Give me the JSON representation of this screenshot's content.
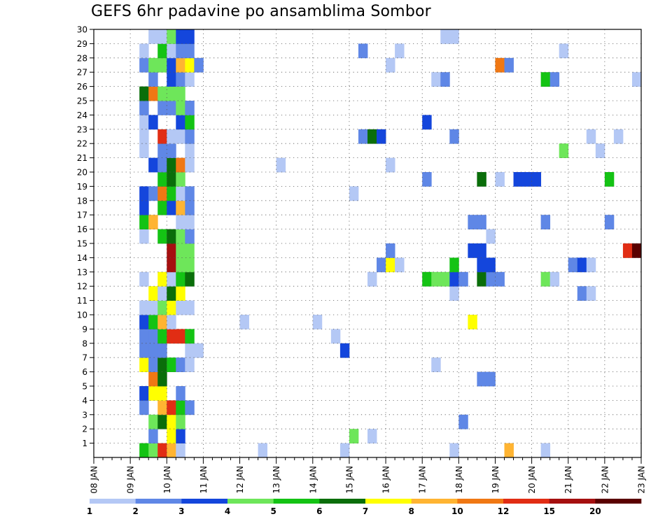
{
  "chart_data": {
    "type": "heatmap",
    "title": "GEFS 6hr padavine po ansamblima Sombor",
    "xlabel": "",
    "ylabel": "",
    "x_tick_labels": [
      "08 JAN",
      "09 JAN",
      "10 JAN",
      "11 JAN",
      "12 JAN",
      "13 JAN",
      "14 JAN",
      "15 JAN",
      "16 JAN",
      "17 JAN",
      "18 JAN",
      "19 JAN",
      "20 JAN",
      "21 JAN",
      "22 JAN",
      "23 JAN"
    ],
    "y_tick_labels": [
      "1",
      "2",
      "3",
      "4",
      "5",
      "6",
      "7",
      "8",
      "9",
      "10",
      "11",
      "12",
      "13",
      "14",
      "15",
      "16",
      "17",
      "18",
      "19",
      "20",
      "21",
      "22",
      "23",
      "24",
      "25",
      "26",
      "27",
      "28",
      "29",
      "30"
    ],
    "xlim": [
      0,
      60
    ],
    "ylim": [
      0,
      30
    ],
    "step_hours": 6,
    "grid": true,
    "grid_style": "dotted",
    "legend_position": "bottom",
    "legend": {
      "boundaries": [
        "1",
        "2",
        "3",
        "4",
        "5",
        "6",
        "7",
        "8",
        "10",
        "12",
        "15",
        "20"
      ],
      "colors": [
        "#b4c8f5",
        "#5f87e6",
        "#1446dc",
        "#6ee65a",
        "#14c314",
        "#0a6e0a",
        "#ffff00",
        "#ffb432",
        "#f07814",
        "#e12d14",
        "#a50f0f",
        "#5a0000"
      ]
    },
    "cell_colors": {
      "1": "#b4c8f5",
      "2": "#5f87e6",
      "3": "#1446dc",
      "4": "#6ee65a",
      "5": "#14c314",
      "6": "#0a6e0a",
      "7": "#ffff00",
      "8": "#ffb432",
      "9": "#f07814",
      "10": "#e12d14",
      "11": "#a50f0f",
      "12": "#5a0000"
    },
    "series": [
      {
        "member": 1,
        "values": [
          [
            6,
            5
          ],
          [
            7,
            4
          ],
          [
            8,
            10
          ],
          [
            9,
            8
          ],
          [
            10,
            1
          ],
          [
            19,
            1
          ],
          [
            28,
            1
          ],
          [
            40,
            1
          ],
          [
            46,
            8
          ],
          [
            50,
            1
          ]
        ]
      },
      {
        "member": 2,
        "values": [
          [
            7,
            2
          ],
          [
            9,
            7
          ],
          [
            10,
            3
          ],
          [
            29,
            4
          ],
          [
            31,
            1
          ]
        ]
      },
      {
        "member": 3,
        "values": [
          [
            7,
            4
          ],
          [
            8,
            6
          ],
          [
            9,
            7
          ],
          [
            10,
            4
          ],
          [
            41,
            2
          ]
        ]
      },
      {
        "member": 4,
        "values": [
          [
            6,
            2
          ],
          [
            8,
            8
          ],
          [
            9,
            10
          ],
          [
            10,
            5
          ],
          [
            11,
            2
          ]
        ]
      },
      {
        "member": 5,
        "values": [
          [
            6,
            3
          ],
          [
            7,
            7
          ],
          [
            8,
            7
          ],
          [
            10,
            2
          ]
        ]
      },
      {
        "member": 6,
        "values": [
          [
            7,
            9
          ],
          [
            8,
            6
          ],
          [
            43,
            2
          ],
          [
            44,
            2
          ]
        ]
      },
      {
        "member": 7,
        "values": [
          [
            6,
            7
          ],
          [
            7,
            2
          ],
          [
            8,
            6
          ],
          [
            9,
            5
          ],
          [
            10,
            2
          ],
          [
            11,
            1
          ],
          [
            38,
            1
          ]
        ]
      },
      {
        "member": 8,
        "values": [
          [
            6,
            2
          ],
          [
            7,
            2
          ],
          [
            8,
            2
          ],
          [
            11,
            1
          ],
          [
            12,
            1
          ],
          [
            28,
            3
          ]
        ]
      },
      {
        "member": 9,
        "values": [
          [
            6,
            2
          ],
          [
            7,
            2
          ],
          [
            8,
            5
          ],
          [
            9,
            10
          ],
          [
            10,
            10
          ],
          [
            11,
            5
          ],
          [
            27,
            1
          ]
        ]
      },
      {
        "member": 10,
        "values": [
          [
            6,
            3
          ],
          [
            7,
            5
          ],
          [
            8,
            8
          ],
          [
            9,
            1
          ],
          [
            17,
            1
          ],
          [
            25,
            1
          ],
          [
            42,
            7
          ]
        ]
      },
      {
        "member": 11,
        "values": [
          [
            6,
            1
          ],
          [
            7,
            1
          ],
          [
            8,
            4
          ],
          [
            9,
            7
          ],
          [
            10,
            1
          ],
          [
            11,
            1
          ]
        ]
      },
      {
        "member": 12,
        "values": [
          [
            7,
            7
          ],
          [
            8,
            1
          ],
          [
            9,
            6
          ],
          [
            10,
            7
          ],
          [
            40,
            1
          ],
          [
            54,
            2
          ],
          [
            55,
            1
          ]
        ]
      },
      {
        "member": 13,
        "values": [
          [
            6,
            1
          ],
          [
            8,
            7
          ],
          [
            9,
            1
          ],
          [
            10,
            5
          ],
          [
            11,
            6
          ],
          [
            31,
            1
          ],
          [
            37,
            5
          ],
          [
            38,
            4
          ],
          [
            39,
            4
          ],
          [
            40,
            3
          ],
          [
            41,
            2
          ],
          [
            43,
            6
          ],
          [
            44,
            2
          ],
          [
            45,
            2
          ],
          [
            50,
            4
          ],
          [
            51,
            1
          ]
        ]
      },
      {
        "member": 14,
        "values": [
          [
            9,
            11
          ],
          [
            10,
            4
          ],
          [
            11,
            4
          ],
          [
            32,
            2
          ],
          [
            33,
            7
          ],
          [
            34,
            1
          ],
          [
            40,
            5
          ],
          [
            43,
            3
          ],
          [
            44,
            3
          ],
          [
            53,
            2
          ],
          [
            54,
            3
          ],
          [
            55,
            1
          ]
        ]
      },
      {
        "member": 15,
        "values": [
          [
            9,
            11
          ],
          [
            10,
            4
          ],
          [
            11,
            4
          ],
          [
            33,
            2
          ],
          [
            42,
            3
          ],
          [
            43,
            3
          ],
          [
            59,
            10
          ],
          [
            60,
            12
          ]
        ]
      },
      {
        "member": 16,
        "values": [
          [
            6,
            1
          ],
          [
            8,
            5
          ],
          [
            9,
            6
          ],
          [
            10,
            4
          ],
          [
            11,
            2
          ],
          [
            44,
            1
          ]
        ]
      },
      {
        "member": 17,
        "values": [
          [
            6,
            5
          ],
          [
            7,
            8
          ],
          [
            10,
            1
          ],
          [
            11,
            1
          ],
          [
            42,
            2
          ],
          [
            43,
            2
          ],
          [
            50,
            2
          ],
          [
            57,
            2
          ]
        ]
      },
      {
        "member": 18,
        "values": [
          [
            6,
            3
          ],
          [
            8,
            5
          ],
          [
            9,
            3
          ],
          [
            10,
            8
          ],
          [
            11,
            2
          ]
        ]
      },
      {
        "member": 19,
        "values": [
          [
            6,
            3
          ],
          [
            7,
            2
          ],
          [
            8,
            9
          ],
          [
            9,
            5
          ],
          [
            10,
            1
          ],
          [
            11,
            2
          ],
          [
            29,
            1
          ]
        ]
      },
      {
        "member": 20,
        "values": [
          [
            8,
            5
          ],
          [
            9,
            6
          ],
          [
            10,
            4
          ],
          [
            37,
            2
          ],
          [
            43,
            6
          ],
          [
            45,
            1
          ],
          [
            47,
            3
          ],
          [
            48,
            3
          ],
          [
            49,
            3
          ],
          [
            57,
            5
          ]
        ]
      },
      {
        "member": 21,
        "values": [
          [
            7,
            3
          ],
          [
            8,
            2
          ],
          [
            9,
            6
          ],
          [
            10,
            9
          ],
          [
            11,
            1
          ],
          [
            21,
            1
          ],
          [
            33,
            1
          ]
        ]
      },
      {
        "member": 22,
        "values": [
          [
            6,
            1
          ],
          [
            8,
            2
          ],
          [
            9,
            2
          ],
          [
            11,
            1
          ],
          [
            52,
            4
          ],
          [
            56,
            1
          ]
        ]
      },
      {
        "member": 23,
        "values": [
          [
            6,
            1
          ],
          [
            8,
            10
          ],
          [
            9,
            1
          ],
          [
            10,
            1
          ],
          [
            11,
            2
          ],
          [
            30,
            2
          ],
          [
            31,
            6
          ],
          [
            32,
            3
          ],
          [
            40,
            2
          ],
          [
            55,
            1
          ],
          [
            58,
            1
          ]
        ]
      },
      {
        "member": 24,
        "values": [
          [
            6,
            1
          ],
          [
            7,
            3
          ],
          [
            10,
            3
          ],
          [
            11,
            5
          ],
          [
            37,
            3
          ]
        ]
      },
      {
        "member": 25,
        "values": [
          [
            6,
            2
          ],
          [
            8,
            2
          ],
          [
            9,
            2
          ],
          [
            10,
            4
          ],
          [
            11,
            2
          ]
        ]
      },
      {
        "member": 26,
        "values": [
          [
            6,
            6
          ],
          [
            7,
            9
          ],
          [
            8,
            4
          ],
          [
            9,
            4
          ],
          [
            10,
            4
          ]
        ]
      },
      {
        "member": 27,
        "values": [
          [
            7,
            2
          ],
          [
            9,
            3
          ],
          [
            10,
            2
          ],
          [
            11,
            1
          ],
          [
            38,
            1
          ],
          [
            39,
            2
          ],
          [
            50,
            5
          ],
          [
            51,
            2
          ],
          [
            60,
            1
          ]
        ]
      },
      {
        "member": 28,
        "values": [
          [
            6,
            2
          ],
          [
            7,
            4
          ],
          [
            8,
            4
          ],
          [
            9,
            3
          ],
          [
            10,
            8
          ],
          [
            11,
            7
          ],
          [
            12,
            2
          ],
          [
            33,
            1
          ],
          [
            45,
            9
          ],
          [
            46,
            2
          ]
        ]
      },
      {
        "member": 29,
        "values": [
          [
            6,
            1
          ],
          [
            8,
            5
          ],
          [
            9,
            1
          ],
          [
            10,
            2
          ],
          [
            11,
            2
          ],
          [
            30,
            2
          ],
          [
            34,
            1
          ],
          [
            52,
            1
          ]
        ]
      },
      {
        "member": 30,
        "values": [
          [
            7,
            1
          ],
          [
            8,
            1
          ],
          [
            9,
            4
          ],
          [
            10,
            3
          ],
          [
            11,
            3
          ],
          [
            39,
            1
          ],
          [
            40,
            1
          ]
        ]
      }
    ]
  }
}
